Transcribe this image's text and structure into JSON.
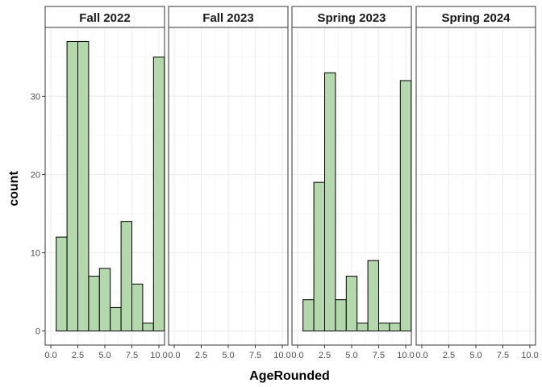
{
  "chart_data": {
    "type": "bar",
    "xlabel": "AgeRounded",
    "ylabel": "count",
    "xlim": [
      0,
      10
    ],
    "ylim": [
      -1.8,
      38.8
    ],
    "x_ticks": [
      0,
      2.5,
      5,
      7.5,
      10
    ],
    "x_tick_labels": [
      "0.0",
      "2.5",
      "5.0",
      "7.5",
      "10.0"
    ],
    "y_ticks": [
      0,
      10,
      20,
      30
    ],
    "y_tick_labels": [
      "0",
      "10",
      "20",
      "30"
    ],
    "grid": true,
    "fill_color": "#b2d8ab",
    "edge_color": "#000000",
    "bins": [
      {
        "xmin": 0.5,
        "xmax": 1.5
      },
      {
        "xmin": 1.5,
        "xmax": 2.5
      },
      {
        "xmin": 2.5,
        "xmax": 3.5
      },
      {
        "xmin": 3.5,
        "xmax": 4.5
      },
      {
        "xmin": 4.5,
        "xmax": 5.5
      },
      {
        "xmin": 5.5,
        "xmax": 6.5
      },
      {
        "xmin": 6.5,
        "xmax": 7.5
      },
      {
        "xmin": 7.5,
        "xmax": 8.5
      },
      {
        "xmin": 8.5,
        "xmax": 9.5
      },
      {
        "xmin": 9.5,
        "xmax": 10.5
      }
    ],
    "panels": [
      {
        "label": "Fall 2022",
        "counts": [
          12,
          37,
          37,
          7,
          8,
          3,
          14,
          6,
          1,
          35
        ]
      },
      {
        "label": "Fall 2023",
        "counts": []
      },
      {
        "label": "Spring 2023",
        "counts": [
          4,
          19,
          33,
          4,
          7,
          1,
          9,
          1,
          1,
          32
        ]
      },
      {
        "label": "Spring 2024",
        "counts": []
      }
    ]
  }
}
